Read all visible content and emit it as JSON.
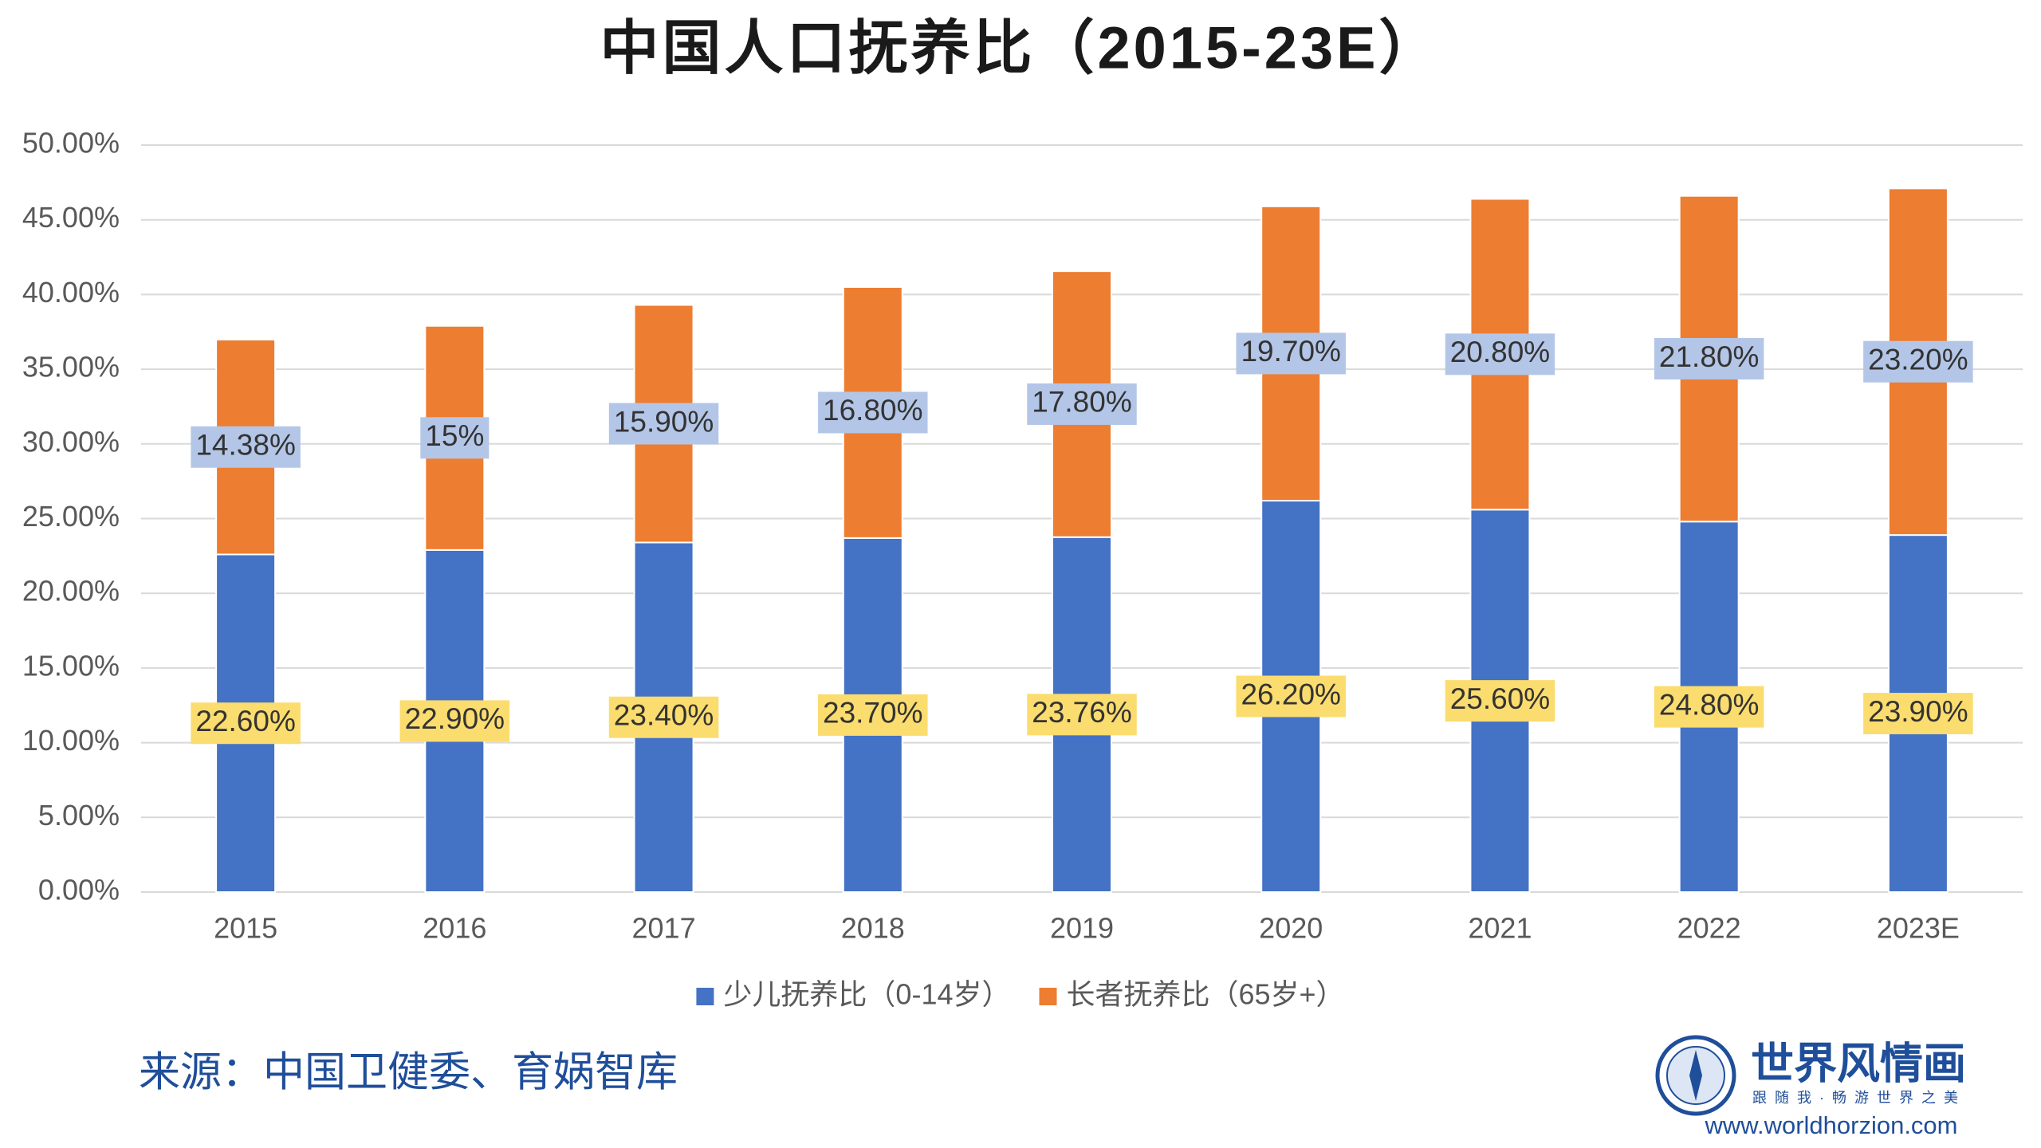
{
  "chart_data": {
    "type": "stacked_bar",
    "title": "中国人口抚养比（2015-23E）",
    "categories": [
      "2015",
      "2016",
      "2017",
      "2018",
      "2019",
      "2020",
      "2021",
      "2022",
      "2023E"
    ],
    "series": [
      {
        "name": "少儿抚养比（0-14岁）",
        "color": "#4472c4",
        "label_color": "#fbdc6e",
        "values": [
          22.6,
          22.9,
          23.4,
          23.7,
          23.76,
          26.2,
          25.6,
          24.8,
          23.9
        ],
        "value_labels": [
          "22.60%",
          "22.90%",
          "23.40%",
          "23.70%",
          "23.76%",
          "26.20%",
          "25.60%",
          "24.80%",
          "23.90%"
        ]
      },
      {
        "name": "长者抚养比（65岁+）",
        "color": "#ed7d31",
        "label_color": "#b4c6e7",
        "values": [
          14.38,
          15,
          15.9,
          16.8,
          17.8,
          19.7,
          20.8,
          21.8,
          23.2
        ],
        "value_labels": [
          "14.38%",
          "15%",
          "15.90%",
          "16.80%",
          "17.80%",
          "19.70%",
          "20.80%",
          "21.80%",
          "23.20%"
        ]
      }
    ],
    "ylim": [
      0,
      50
    ],
    "yticks": [
      {
        "value": 0,
        "label": "0.00%"
      },
      {
        "value": 5,
        "label": "5.00%"
      },
      {
        "value": 10,
        "label": "10.00%"
      },
      {
        "value": 15,
        "label": "15.00%"
      },
      {
        "value": 20,
        "label": "20.00%"
      },
      {
        "value": 25,
        "label": "25.00%"
      },
      {
        "value": 30,
        "label": "30.00%"
      },
      {
        "value": 35,
        "label": "35.00%"
      },
      {
        "value": 40,
        "label": "40.00%"
      },
      {
        "value": 45,
        "label": "45.00%"
      },
      {
        "value": 50,
        "label": "50.00%"
      }
    ],
    "grid": true,
    "legend": "bottom"
  },
  "source": "来源：中国卫健委、育娲智库",
  "logo": {
    "name": "世界风情画",
    "slogan": "跟随我·畅游世界之美",
    "url": "www.worldhorzion.com"
  }
}
